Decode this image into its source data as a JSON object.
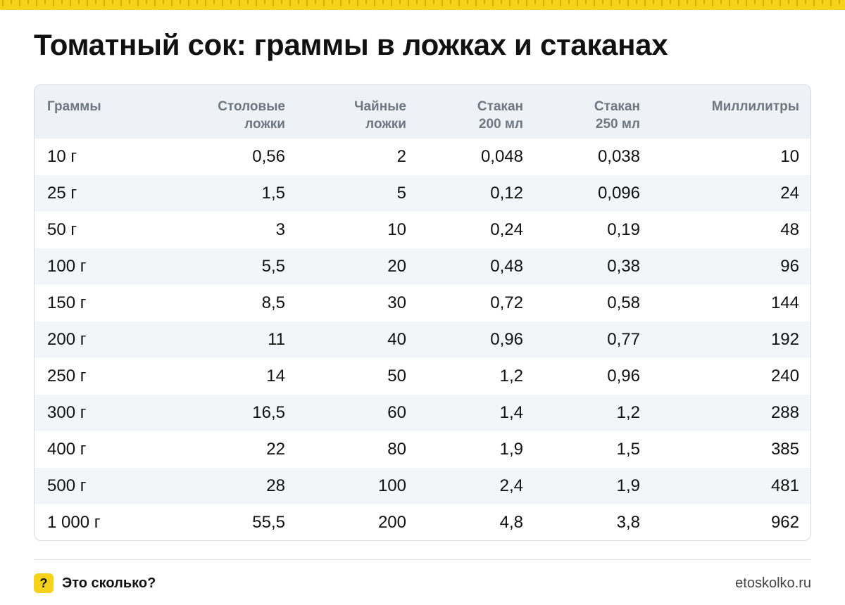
{
  "title": "Томатный сок: граммы в ложках и стаканах",
  "accent_color": "#f7d21a",
  "table": {
    "headers": [
      [
        "Граммы"
      ],
      [
        "Столовые",
        "ложки"
      ],
      [
        "Чайные",
        "ложки"
      ],
      [
        "Стакан",
        "200 мл"
      ],
      [
        "Стакан",
        "250 мл"
      ],
      [
        "Миллилитры"
      ]
    ],
    "rows": [
      [
        "10 г",
        "0,56",
        "2",
        "0,048",
        "0,038",
        "10"
      ],
      [
        "25 г",
        "1,5",
        "5",
        "0,12",
        "0,096",
        "24"
      ],
      [
        "50 г",
        "3",
        "10",
        "0,24",
        "0,19",
        "48"
      ],
      [
        "100 г",
        "5,5",
        "20",
        "0,48",
        "0,38",
        "96"
      ],
      [
        "150 г",
        "8,5",
        "30",
        "0,72",
        "0,58",
        "144"
      ],
      [
        "200 г",
        "11",
        "40",
        "0,96",
        "0,77",
        "192"
      ],
      [
        "250 г",
        "14",
        "50",
        "1,2",
        "0,96",
        "240"
      ],
      [
        "300 г",
        "16,5",
        "60",
        "1,4",
        "1,2",
        "288"
      ],
      [
        "400 г",
        "22",
        "80",
        "1,9",
        "1,5",
        "385"
      ],
      [
        "500 г",
        "28",
        "100",
        "2,4",
        "1,9",
        "481"
      ],
      [
        "1 000 г",
        "55,5",
        "200",
        "4,8",
        "3,8",
        "962"
      ]
    ]
  },
  "footer": {
    "badge": "?",
    "brand": "Это сколько?",
    "site": "etoskolko.ru"
  }
}
